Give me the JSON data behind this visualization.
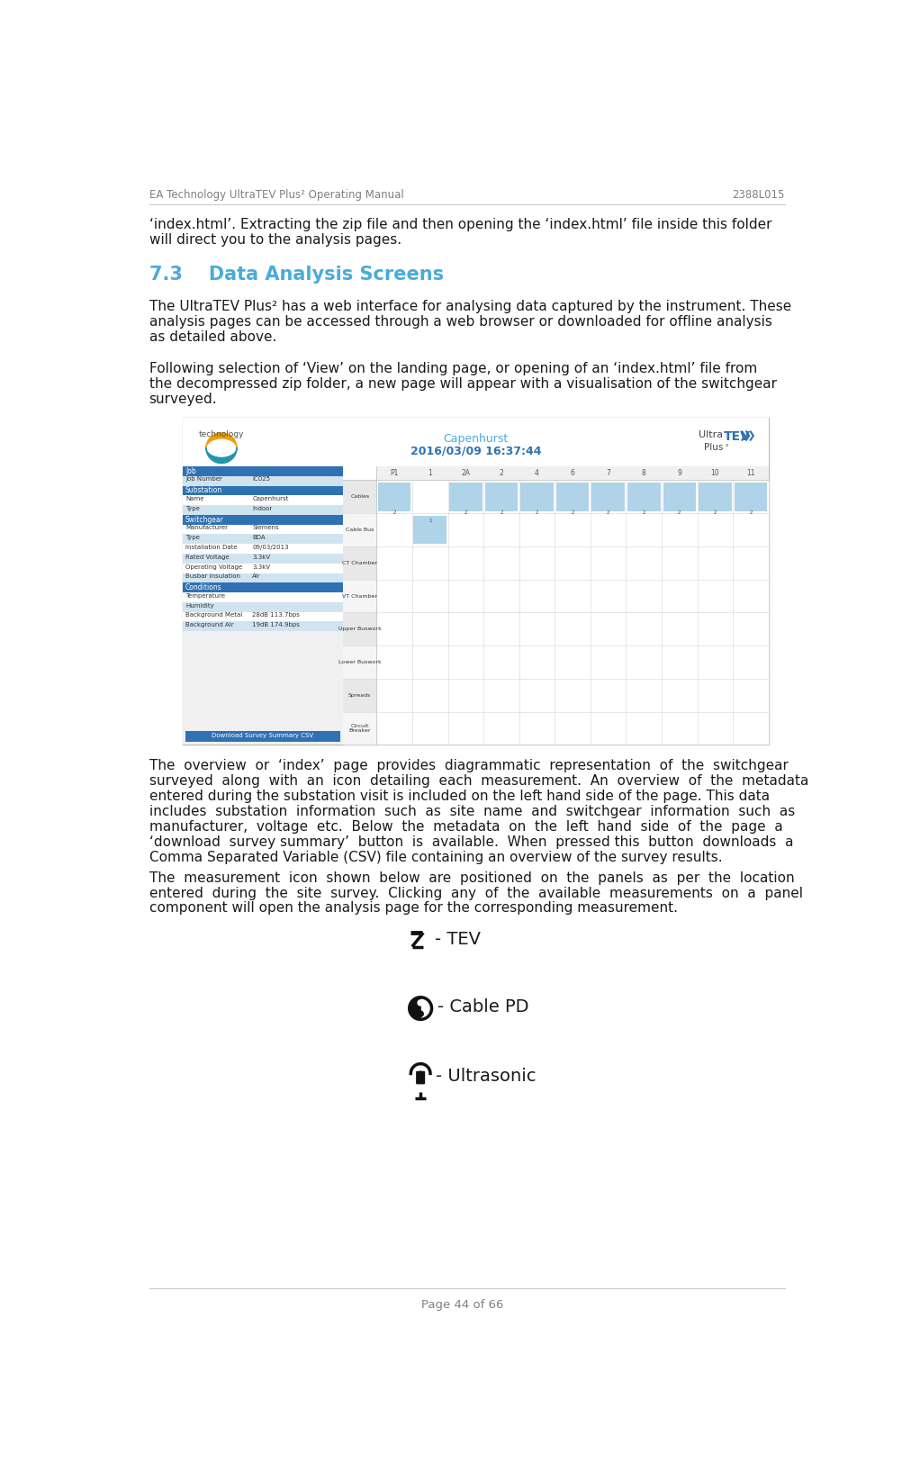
{
  "header_left": "EA Technology UltraTEV Plus² Operating Manual",
  "header_right": "2388L015",
  "header_color": "#808080",
  "footer_text": "Page 44 of 66",
  "footer_color": "#808080",
  "section_heading": "7.3    Data Analysis Screens",
  "section_heading_color": "#4AABDB",
  "body_color": "#1a1a1a",
  "intro_text": "‘index.html’. Extracting the zip file and then opening the ‘index.html’ file inside this folder\nwill direct you to the analysis pages.",
  "para1_line1": "The UltraTEV Plus² has a web interface for analysing data captured by the instrument. These",
  "para1_line2": "analysis pages can be accessed through a web browser or downloaded for offline analysis",
  "para1_line3": "as detailed above.",
  "para2_line1": "Following selection of ‘View’ on the landing page, or opening of an ‘index.html’ file from",
  "para2_line2": "the decompressed zip folder, a new page will appear with a visualisation of the switchgear",
  "para2_line3": "surveyed.",
  "para3_line1": "The  overview  or  ‘index’  page  provides  diagrammatic  representation  of  the  switchgear",
  "para3_line2": "surveyed  along  with  an  icon  detailing  each  measurement.  An  overview  of  the  metadata",
  "para3_line3": "entered during the substation visit is included on the left hand side of the page. This data",
  "para3_line4": "includes  substation  information  such  as  site  name  and  switchgear  information  such  as",
  "para3_line5": "manufacturer,  voltage  etc.  Below  the  metadata  on  the  left  hand  side  of  the  page  a",
  "para3_line6": "‘download  survey summary’  button  is  available.  When  pressed this  button  downloads  a",
  "para3_line7": "Comma Separated Variable (CSV) file containing an overview of the survey results.",
  "para4_line1": "The  measurement  icon  shown  below  are  positioned  on  the  panels  as  per  the  location",
  "para4_line2": "entered  during  the  site  survey.  Clicking  any  of  the  available  measurements  on  a  panel",
  "para4_line3": "component will open the analysis page for the corresponding measurement.",
  "icon_tev_label": "- TEV",
  "icon_cablepd_label": "- Cable PD",
  "icon_ultrasonic_label": "- Ultrasonic",
  "bg_color": "#ffffff",
  "line_color": "#cccccc",
  "ss_sidebar_blue": "#2f72b3",
  "ss_sidebar_light": "#d0e4f0",
  "ss_sidebar_white": "#ffffff",
  "ss_cable_blue": "#afd3e8",
  "ss_header_text": "#4AABDB",
  "ss_date_text": "#2f72b3",
  "ss_border": "#bbbbbb"
}
